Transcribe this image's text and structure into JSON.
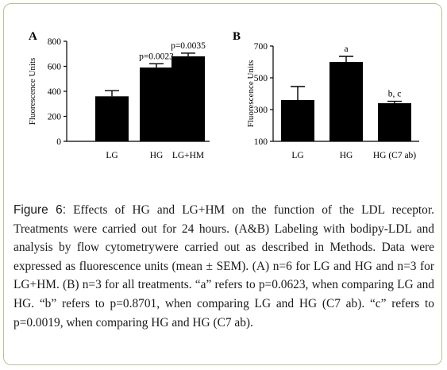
{
  "chart_data": [
    {
      "type": "bar",
      "panel_label": "A",
      "ylabel": "Fluorescence Units",
      "categories": [
        "LG",
        "HG",
        "LG+HM"
      ],
      "values": [
        360,
        590,
        680
      ],
      "errors": [
        45,
        30,
        25
      ],
      "bar_labels": [
        "",
        "p=0.0023",
        "p=0.0035"
      ],
      "ylim": [
        0,
        800
      ],
      "yticks": [
        "0",
        "200",
        "400",
        "600",
        "800"
      ],
      "bar_color": "#000000"
    },
    {
      "type": "bar",
      "panel_label": "B",
      "ylabel": "Fluorescence Units",
      "categories": [
        "LG",
        "HG",
        "HG (C7 ab)"
      ],
      "values": [
        360,
        600,
        340
      ],
      "errors": [
        85,
        35,
        12
      ],
      "bar_labels": [
        "",
        "a",
        "b, c"
      ],
      "ylim": [
        100,
        700
      ],
      "yticks": [
        "100",
        "300",
        "500",
        "700"
      ],
      "bar_color": "#000000"
    }
  ],
  "caption": {
    "label": "Figure 6:",
    "text": " Effects of HG and LG+HM on the function of the LDL receptor. Treatments were carried out for 24 hours. (A&B) Labeling with bodipy-LDL and analysis by flow cytometrywere carried out as described in Methods. Data were expressed as fluorescence units (mean ± SEM). (A) n=6 for LG and HG and n=3 for LG+HM. (B) n=3 for all treatments. “a” refers to p=0.0623, when comparing LG and HG. “b” refers to p=0.8701, when comparing LG and HG (C7 ab). “c” refers to p=0.0019, when comparing HG and HG (C7 ab)."
  },
  "colors": {
    "frame_border": "#b7c48e",
    "text": "#1a1a1a"
  }
}
